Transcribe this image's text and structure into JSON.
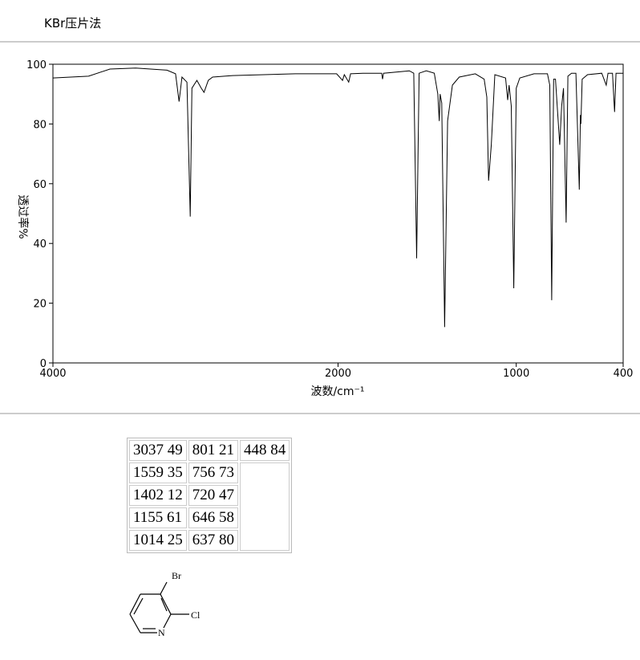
{
  "header": {
    "title": "KBr压片法"
  },
  "chart_data": {
    "type": "line",
    "x_label": "波数/cm⁻¹",
    "y_label": "透过率%",
    "x": [
      4000,
      3750,
      3600,
      3420,
      3200,
      3140,
      3115,
      3095,
      3060,
      3037,
      3025,
      2990,
      2960,
      2940,
      2910,
      2880,
      2740,
      2300,
      2010,
      1975,
      1965,
      1940,
      1930,
      1860,
      1755,
      1750,
      1745,
      1600,
      1575,
      1559,
      1545,
      1505,
      1460,
      1440,
      1432,
      1427,
      1418,
      1402,
      1385,
      1358,
      1320,
      1230,
      1180,
      1165,
      1155,
      1140,
      1120,
      1060,
      1048,
      1040,
      1028,
      1014,
      1000,
      980,
      900,
      825,
      812,
      801,
      790,
      780,
      756,
      745,
      735,
      720,
      710,
      690,
      665,
      646,
      640,
      637,
      630,
      600,
      520,
      495,
      485,
      460,
      448,
      440,
      420,
      400
    ],
    "values": [
      95.4,
      96,
      98.4,
      98.7,
      98,
      96.8,
      87.5,
      95.7,
      94,
      49,
      92,
      94.6,
      92,
      90.6,
      94.6,
      95.7,
      96.2,
      96.8,
      96.8,
      94.6,
      96.5,
      94,
      96.8,
      97,
      97,
      95,
      97,
      97.8,
      97,
      35,
      97,
      97.8,
      97,
      90,
      81,
      90,
      87,
      12,
      81,
      93,
      95.7,
      96.8,
      95,
      89,
      61,
      73,
      96.5,
      95.4,
      88,
      93,
      86,
      25,
      92,
      95.4,
      96.8,
      96.8,
      93,
      21,
      95,
      95,
      73,
      86,
      92,
      47,
      96,
      97,
      97,
      58,
      83,
      80,
      95,
      96.5,
      97,
      93,
      97,
      97,
      84,
      97,
      97,
      97
    ],
    "color": "#000000",
    "xlim": [
      4000,
      400
    ],
    "x_scale_break": 2000,
    "xticks": [
      4000,
      2000,
      1000,
      400
    ],
    "ylim": [
      0,
      100
    ],
    "yticks": [
      0,
      20,
      40,
      60,
      80,
      100
    ]
  },
  "table": {
    "columns": [
      [
        "3037 49",
        "1559 35",
        "1402 12",
        "1155 61",
        "1014 25"
      ],
      [
        "801 21",
        "756 73",
        "720 47",
        "646 58",
        "637 80"
      ],
      [
        "448 84"
      ]
    ]
  },
  "structure": {
    "atoms": [
      "Br",
      "Cl",
      "N"
    ]
  }
}
